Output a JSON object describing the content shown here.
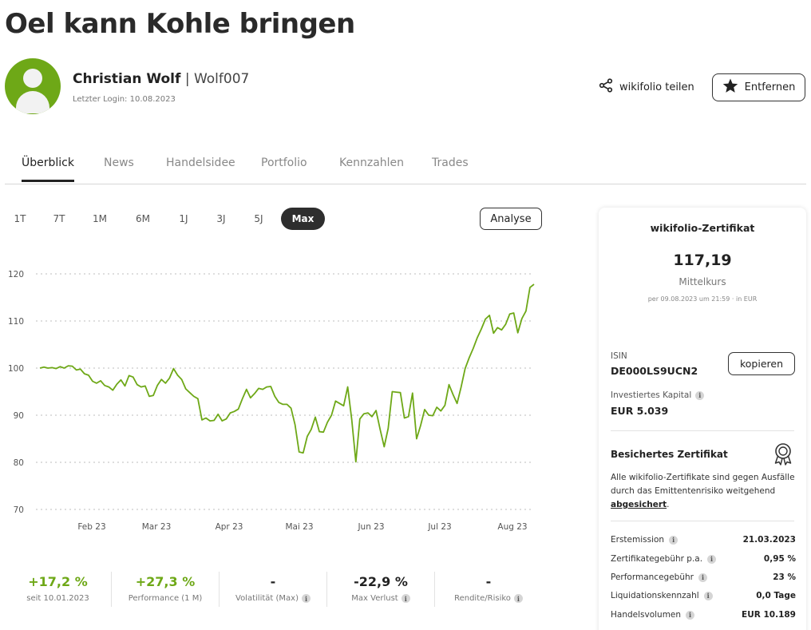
{
  "page_title": "Oel kann Kohle bringen",
  "author": {
    "name": "Christian Wolf",
    "separator": "|",
    "username": "Wolf007",
    "last_login": "Letzter Login: 10.08.2023"
  },
  "actions": {
    "share_label": "wikifolio teilen",
    "remove_label": "Entfernen"
  },
  "tabs": [
    {
      "label": "Überblick",
      "active": true
    },
    {
      "label": "News"
    },
    {
      "label": "Handelsidee"
    },
    {
      "label": "Portfolio"
    },
    {
      "label": "Kennzahlen"
    },
    {
      "label": "Trades"
    }
  ],
  "periods": [
    {
      "label": "1T"
    },
    {
      "label": "7T"
    },
    {
      "label": "1M"
    },
    {
      "label": "6M"
    },
    {
      "label": "1J"
    },
    {
      "label": "3J"
    },
    {
      "label": "5J"
    },
    {
      "label": "Max",
      "active": true
    }
  ],
  "analyse_label": "Analyse",
  "chart_data": {
    "type": "line",
    "color": "#6ea817",
    "grid": true,
    "yticks": [
      120,
      110,
      100,
      90,
      80,
      70
    ],
    "ylim": [
      70,
      120
    ],
    "xticks": [
      "Feb 23",
      "Mar 23",
      "Apr 23",
      "Mai 23",
      "Jun 23",
      "Jul 23",
      "Aug 23"
    ],
    "series": [
      {
        "values": [
          100,
          100.2,
          100,
          100.1,
          99.9,
          100.3,
          100,
          100.5,
          100.4,
          99.6,
          99.8,
          98.8,
          98.5,
          97.2,
          96.8,
          97.3,
          96.3,
          96,
          95.3,
          96.6,
          97.5,
          96.2,
          98.4,
          98.1,
          96.5,
          96,
          96.2,
          94,
          94.2,
          96.3,
          97.6,
          96.8,
          97.9,
          99.9,
          98.5,
          97.6,
          95.6,
          94.8,
          94,
          93.5,
          89,
          89.4,
          88.8,
          88.9,
          90.2,
          88.8,
          89.2,
          90.5,
          90.8,
          91.3,
          93.5,
          95.5,
          93.7,
          94.6,
          95.7,
          95.5,
          96,
          96.1,
          94,
          92.7,
          92.3,
          92.3,
          91.5,
          88,
          82.2,
          82,
          85.5,
          87,
          89.6,
          86.5,
          86.4,
          88.5,
          90,
          93,
          92.5,
          92,
          96,
          89,
          80.1,
          89.2,
          90.3,
          90.5,
          89.7,
          91,
          87,
          83.3,
          87.2,
          95,
          94.9,
          94.8,
          89.4,
          89.7,
          94.7,
          85,
          87.8,
          91.2,
          90,
          89.9,
          91.7,
          90.9,
          92.1,
          96.5,
          94.4,
          92.5,
          96,
          99.9,
          102.2,
          104.2,
          106.5,
          108.3,
          110.4,
          111.2,
          107.4,
          108.6,
          108.1,
          109.3,
          111.5,
          111.7,
          107.5,
          110.5,
          112.1,
          117.1,
          117.8
        ]
      }
    ]
  },
  "stats": [
    {
      "value": "+17,2 %",
      "label": "seit 10.01.2023",
      "positive": true,
      "info": false
    },
    {
      "value": "+27,3 %",
      "label": "Performance (1 M)",
      "positive": true,
      "info": false
    },
    {
      "value": "-",
      "label": "Volatilität (Max)",
      "positive": false,
      "info": true
    },
    {
      "value": "-22,9 %",
      "label": "Max Verlust",
      "positive": false,
      "info": true
    },
    {
      "value": "-",
      "label": "Rendite/Risiko",
      "positive": false,
      "info": true
    }
  ],
  "certificate": {
    "title": "wikifolio-Zertifikat",
    "price": "117,19",
    "price_label": "Mittelkurs",
    "date_line": "per 09.08.2023 um 21:59 · in EUR",
    "isin_label": "ISIN",
    "isin": "DE000LS9UCN2",
    "copy_label": "kopieren",
    "capital_label": "Investiertes Kapital",
    "capital": "EUR 5.039",
    "secure_title": "Besichertes Zertifikat",
    "secure_text": "Alle wikifolio-Zertifikate sind gegen Ausfälle durch das Emittentenrisiko weitgehend",
    "secure_link": "abgesichert",
    "secure_after": ".",
    "details": [
      {
        "label": "Erstemission",
        "value": "21.03.2023"
      },
      {
        "label": "Zertifikategebühr p.a.",
        "value": "0,95 %"
      },
      {
        "label": "Performancegebühr",
        "value": "23 %"
      },
      {
        "label": "Liquidationskennzahl",
        "value": "0,0 Tage"
      },
      {
        "label": "Handelsvolumen",
        "value": "EUR 10.189"
      }
    ]
  }
}
